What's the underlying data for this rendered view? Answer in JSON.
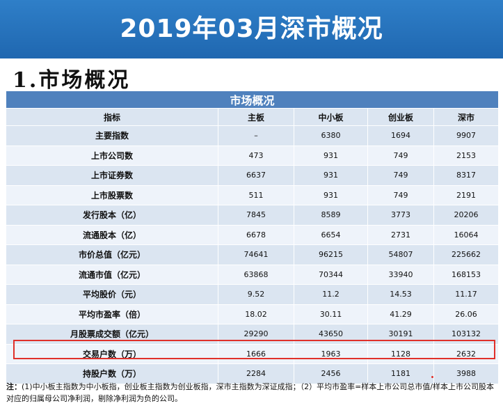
{
  "banner": {
    "title": "2019年03月深市概况"
  },
  "section": {
    "title": "1.市场概况"
  },
  "table": {
    "caption": "市场概况",
    "headers": [
      "指标",
      "主板",
      "中小板",
      "创业板",
      "深市"
    ],
    "rows": [
      [
        "主要指数",
        "–",
        "6380",
        "1694",
        "9907"
      ],
      [
        "上市公司数",
        "473",
        "931",
        "749",
        "2153"
      ],
      [
        "上市证券数",
        "6637",
        "931",
        "749",
        "8317"
      ],
      [
        "上市股票数",
        "511",
        "931",
        "749",
        "2191"
      ],
      [
        "发行股本（亿）",
        "7845",
        "8589",
        "3773",
        "20206"
      ],
      [
        "流通股本（亿）",
        "6678",
        "6654",
        "2731",
        "16064"
      ],
      [
        "市价总值（亿元）",
        "74641",
        "96215",
        "54807",
        "225662"
      ],
      [
        "流通市值（亿元）",
        "63868",
        "70344",
        "33940",
        "168153"
      ],
      [
        "平均股价（元）",
        "9.52",
        "11.2",
        "14.53",
        "11.17"
      ],
      [
        "平均市盈率（倍）",
        "18.02",
        "30.11",
        "41.29",
        "26.06"
      ],
      [
        "月股票成交额（亿元）",
        "29290",
        "43650",
        "30191",
        "103132"
      ],
      [
        "交易户数（万）",
        "1666",
        "1963",
        "1128",
        "2632"
      ],
      [
        "持股户数（万）",
        "2284",
        "2456",
        "1181",
        "3988"
      ]
    ]
  },
  "note": {
    "prefix": "注：",
    "text": "(1)中小板主指数为中小板指，创业板主指数为创业板指，深市主指数为深证成指；（2）平均市盈率=样本上市公司总市值/样本上市公司股本对应的归属母公司净利润，剔除净利润为负的公司。"
  },
  "colors": {
    "banner": "#2370bd",
    "header": "#4f81bd",
    "row_odd": "#dbe5f1",
    "row_even": "#eef3fa",
    "highlight": "#e0302a"
  }
}
